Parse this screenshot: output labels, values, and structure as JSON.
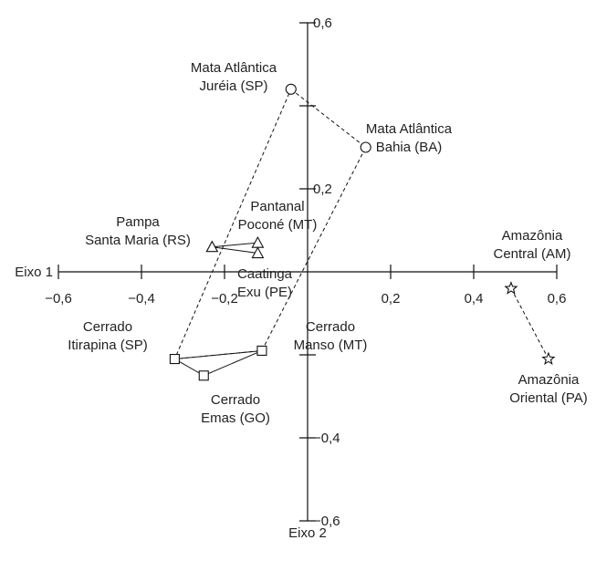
{
  "chart_data": {
    "type": "scatter",
    "title": "",
    "xlabel": "Eixo 1",
    "ylabel": "Eixo 2",
    "xlim": [
      -0.6,
      0.6
    ],
    "ylim": [
      -0.6,
      0.6
    ],
    "x_ticks": [
      -0.6,
      -0.4,
      -0.2,
      0.2,
      0.4,
      0.6
    ],
    "x_tick_labels": [
      "−0,6",
      "−0,4",
      "−0,2",
      "0,2",
      "0,4",
      "0,6"
    ],
    "y_ticks": [
      0.6,
      0.4,
      0.2,
      -0.2,
      -0.4,
      -0.6
    ],
    "y_tick_labels": [
      "0,6",
      "",
      "0,2",
      "",
      "−0,4",
      "−0,6"
    ],
    "grid": false,
    "points": [
      {
        "group": "mata-atlantica",
        "marker": "circle",
        "x": -0.04,
        "y": 0.44,
        "label": [
          "Mata Atlântica",
          "Juréia (SP)"
        ]
      },
      {
        "group": "mata-atlantica",
        "marker": "circle",
        "x": 0.14,
        "y": 0.3,
        "label": [
          "Mata Atlântica",
          "Bahia (BA)"
        ]
      },
      {
        "group": "pampa",
        "marker": "triangle",
        "x": -0.23,
        "y": 0.06,
        "label": [
          "Pampa",
          "Santa Maria (RS)"
        ]
      },
      {
        "group": "pantanal",
        "marker": "triangle",
        "x": -0.12,
        "y": 0.07,
        "label": [
          "Pantanal",
          "Poconé (MT)"
        ]
      },
      {
        "group": "caatinga",
        "marker": "triangle",
        "x": -0.12,
        "y": 0.045,
        "label": [
          "Caatinga",
          "Exu (PE)"
        ]
      },
      {
        "group": "cerrado",
        "marker": "square",
        "x": -0.32,
        "y": -0.21,
        "label": [
          "Cerrado",
          "Itirapina (SP)"
        ]
      },
      {
        "group": "cerrado",
        "marker": "square",
        "x": -0.25,
        "y": -0.25,
        "label": [
          "Cerrado",
          "Emas (GO)"
        ]
      },
      {
        "group": "cerrado",
        "marker": "square",
        "x": -0.11,
        "y": -0.19,
        "label": [
          "Cerrado",
          "Manso (MT)"
        ]
      },
      {
        "group": "amazonia",
        "marker": "star",
        "x": 0.49,
        "y": -0.04,
        "label": [
          "Amazônia",
          "Central (AM)"
        ]
      },
      {
        "group": "amazonia",
        "marker": "star",
        "x": 0.58,
        "y": -0.21,
        "label": [
          "Amazônia",
          "Oriental (PA)"
        ]
      }
    ],
    "dashed_hulls": [
      {
        "name": "mata-atlantica-cerrado-envelope",
        "path": [
          [
            -0.04,
            0.44
          ],
          [
            0.14,
            0.3
          ],
          [
            -0.11,
            -0.19
          ],
          [
            -0.32,
            -0.21
          ]
        ]
      },
      {
        "name": "amazonia-link",
        "path": [
          [
            0.49,
            -0.04
          ],
          [
            0.58,
            -0.21
          ]
        ]
      }
    ],
    "solid_hulls": [
      {
        "name": "triangle-group",
        "path": [
          [
            -0.23,
            0.06
          ],
          [
            -0.12,
            0.07
          ],
          [
            -0.12,
            0.045
          ]
        ]
      },
      {
        "name": "square-group",
        "path": [
          [
            -0.32,
            -0.21
          ],
          [
            -0.25,
            -0.25
          ],
          [
            -0.11,
            -0.19
          ]
        ]
      }
    ]
  }
}
